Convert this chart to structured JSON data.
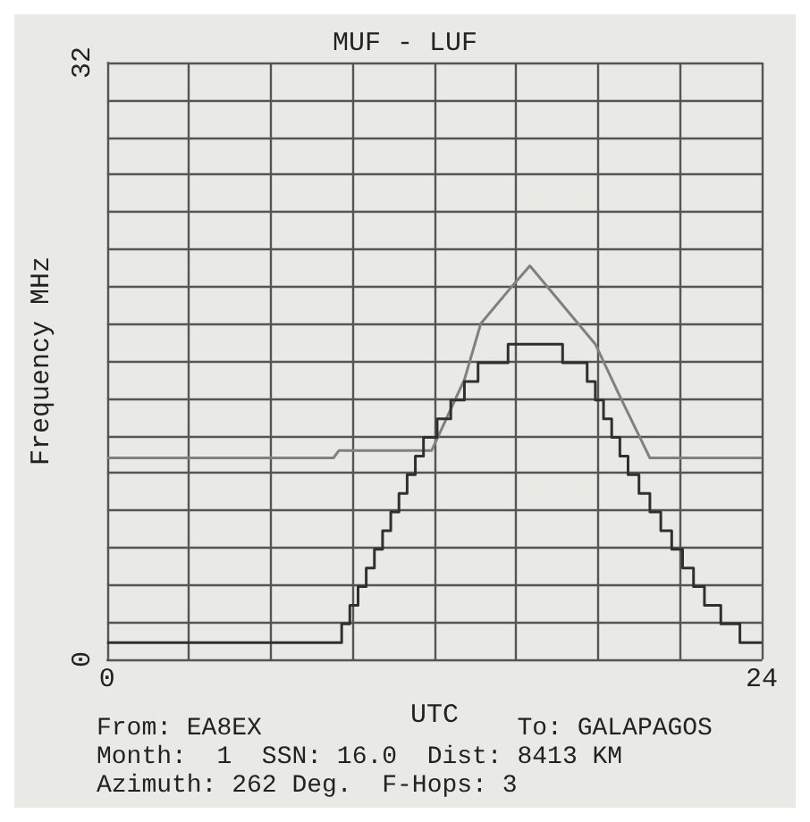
{
  "chart_data": {
    "type": "line",
    "title": "MUF - LUF",
    "xlabel": "UTC",
    "ylabel": "Frequency MHz",
    "xlim": [
      0,
      24
    ],
    "xticks": [
      0,
      {
        "value": 3,
        "label": null
      },
      {
        "value": 6,
        "label": null
      },
      {
        "value": 9,
        "label": null
      },
      {
        "value": 12,
        "label": null
      },
      {
        "value": 15,
        "label": null
      },
      {
        "value": 18,
        "label": null
      },
      {
        "value": 21,
        "label": null
      },
      24
    ],
    "ylim": [
      0,
      32
    ],
    "yticks": [
      0,
      {
        "value": 2,
        "label": null
      },
      {
        "value": 4,
        "label": null
      },
      {
        "value": 6,
        "label": null
      },
      {
        "value": 8,
        "label": null
      },
      {
        "value": 10,
        "label": null
      },
      {
        "value": 12,
        "label": null
      },
      {
        "value": 14,
        "label": null
      },
      {
        "value": 16,
        "label": null
      },
      {
        "value": 18,
        "label": null
      },
      {
        "value": 20,
        "label": null
      },
      {
        "value": 22,
        "label": null
      },
      {
        "value": 24,
        "label": null
      },
      {
        "value": 26,
        "label": null
      },
      {
        "value": 28,
        "label": null
      },
      {
        "value": 30,
        "label": null
      },
      32
    ],
    "grid": true,
    "marker": "none",
    "line_style": "solid",
    "series": [
      {
        "color": "#808080",
        "x": [
          0,
          8.3,
          8.5,
          11.9,
          13.1,
          13.7,
          14.9,
          15.5,
          17.9,
          18.8,
          19.9,
          24
        ],
        "values": [
          10.8,
          10.8,
          11.2,
          11.2,
          15.0,
          18.0,
          20.1,
          21.1,
          16.9,
          14.1,
          10.8,
          10.8
        ]
      },
      {
        "type": "step",
        "color": "#303030",
        "x": [
          0,
          8.6,
          8.9,
          9.2,
          9.5,
          9.8,
          10.1,
          10.4,
          10.7,
          11.0,
          11.3,
          11.6,
          12.1,
          12.6,
          13.1,
          13.6,
          14.7,
          16.7,
          17.6,
          17.9,
          18.2,
          18.5,
          18.8,
          19.1,
          19.5,
          19.9,
          20.3,
          20.7,
          21.1,
          21.5,
          21.9,
          22.5,
          23.2,
          24
        ],
        "values": [
          0.9,
          1.9,
          2.9,
          3.9,
          4.9,
          5.9,
          6.9,
          7.9,
          8.9,
          9.9,
          10.9,
          11.9,
          12.9,
          13.9,
          14.9,
          15.9,
          16.9,
          15.9,
          14.9,
          13.9,
          12.9,
          11.9,
          10.9,
          9.9,
          8.9,
          7.9,
          6.9,
          5.9,
          4.9,
          3.9,
          2.9,
          1.9,
          0.9,
          0.9
        ]
      }
    ],
    "annotations": [
      "From: EA8EX                 To: GALAPAGOS",
      "Month:  1  SSN: 16.0  Dist: 8413 KM",
      "Azimuth: 262 Deg.  F-Hops: 3"
    ]
  }
}
